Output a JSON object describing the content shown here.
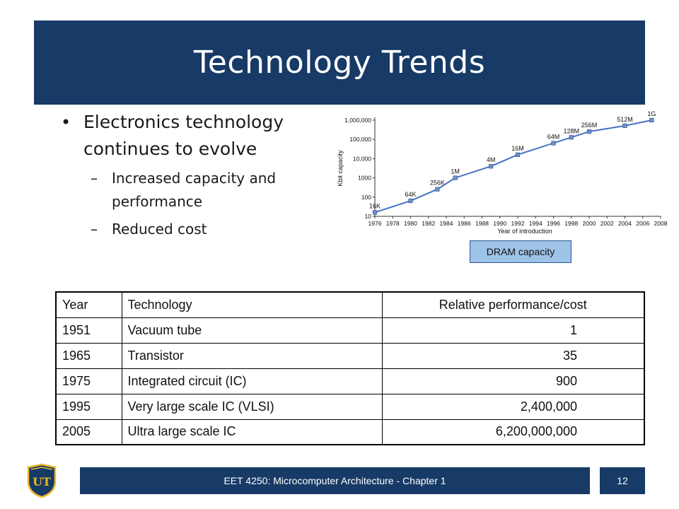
{
  "slide": {
    "title": "Technology Trends",
    "bullets": {
      "main": "Electronics technology continues to evolve",
      "subs": [
        "Increased capacity and performance",
        "Reduced cost"
      ]
    }
  },
  "chart_data": {
    "type": "line",
    "xlabel": "Year of introduction",
    "ylabel": "Kbit capacity",
    "x_ticks": [
      "1976",
      "1978",
      "1980",
      "1982",
      "1984",
      "1986",
      "1988",
      "1990",
      "1992",
      "1994",
      "1996",
      "1998",
      "2000",
      "2002",
      "2004",
      "2006",
      "2008"
    ],
    "y_ticks": [
      "10",
      "100",
      "1000",
      "10,000",
      "100,000",
      "1,000,000"
    ],
    "y_scale": "log",
    "xlim": [
      1976,
      2008
    ],
    "ylim": [
      10,
      1000000
    ],
    "caption": "DRAM capacity",
    "points": [
      {
        "year": 1976,
        "kbit": 16,
        "label": "16K"
      },
      {
        "year": 1980,
        "kbit": 64,
        "label": "64K"
      },
      {
        "year": 1983,
        "kbit": 256,
        "label": "256K"
      },
      {
        "year": 1985,
        "kbit": 1000,
        "label": "1M"
      },
      {
        "year": 1989,
        "kbit": 4000,
        "label": "4M"
      },
      {
        "year": 1992,
        "kbit": 16000,
        "label": "16M"
      },
      {
        "year": 1996,
        "kbit": 64000,
        "label": "64M"
      },
      {
        "year": 1998,
        "kbit": 128000,
        "label": "128M"
      },
      {
        "year": 2000,
        "kbit": 256000,
        "label": "256M"
      },
      {
        "year": 2004,
        "kbit": 512000,
        "label": "512M"
      },
      {
        "year": 2007,
        "kbit": 1000000,
        "label": "1G"
      }
    ],
    "colors": {
      "line": "#4472c4",
      "marker": "#6f8fc4"
    }
  },
  "table": {
    "headers": [
      "Year",
      "Technology",
      "Relative performance/cost"
    ],
    "rows": [
      [
        "1951",
        "Vacuum tube",
        "1"
      ],
      [
        "1965",
        "Transistor",
        "35"
      ],
      [
        "1975",
        "Integrated circuit (IC)",
        "900"
      ],
      [
        "1995",
        "Very large scale IC (VLSI)",
        "2,400,000"
      ],
      [
        "2005",
        "Ultra large scale IC",
        "6,200,000,000"
      ]
    ]
  },
  "footer": {
    "text": "EET 4250: Microcomputer Architecture - Chapter 1",
    "page": "12",
    "logo_text": "UT"
  },
  "colors": {
    "brand": "#173a66",
    "caption_bg": "#9dc3e6"
  }
}
